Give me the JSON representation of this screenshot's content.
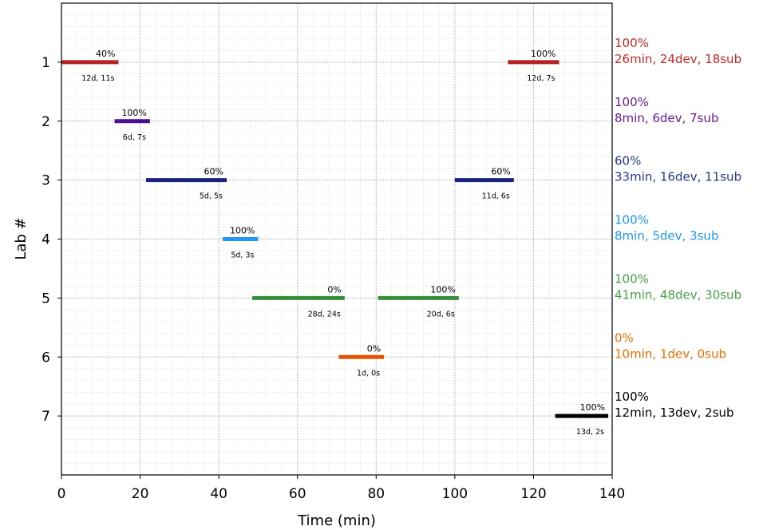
{
  "chart_data": {
    "type": "gantt",
    "xlabel": "Time (min)",
    "ylabel": "Lab #",
    "xlim": [
      0,
      140
    ],
    "ylim": [
      0,
      8
    ],
    "xticks": [
      "0",
      "20",
      "40",
      "60",
      "80",
      "100",
      "120",
      "140"
    ],
    "yticks": [
      "1",
      "2",
      "3",
      "4",
      "5",
      "6",
      "7"
    ],
    "grid": true,
    "segments": [
      {
        "lab": 1,
        "start": 0,
        "end": 14.5,
        "pct": "40%",
        "sub": "12d, 11s",
        "color": "#b22222"
      },
      {
        "lab": 1,
        "start": 113.5,
        "end": 126.5,
        "pct": "100%",
        "sub": "12d, 7s",
        "color": "#b22222"
      },
      {
        "lab": 2,
        "start": 13.5,
        "end": 22.5,
        "pct": "100%",
        "sub": "6d, 7s",
        "color": "#4b0f8f"
      },
      {
        "lab": 3,
        "start": 21.5,
        "end": 42,
        "pct": "60%",
        "sub": "5d, 5s",
        "color": "#1a237e"
      },
      {
        "lab": 3,
        "start": 100,
        "end": 115,
        "pct": "60%",
        "sub": "11d, 6s",
        "color": "#1a237e"
      },
      {
        "lab": 4,
        "start": 41,
        "end": 50,
        "pct": "100%",
        "sub": "5d, 3s",
        "color": "#2196f3"
      },
      {
        "lab": 5,
        "start": 48.5,
        "end": 72,
        "pct": "0%",
        "sub": "28d, 24s",
        "color": "#388e3c"
      },
      {
        "lab": 5,
        "start": 80.5,
        "end": 101,
        "pct": "100%",
        "sub": "20d, 6s",
        "color": "#388e3c"
      },
      {
        "lab": 6,
        "start": 70.5,
        "end": 82,
        "pct": "0%",
        "sub": "1d, 0s",
        "color": "#e65100"
      },
      {
        "lab": 7,
        "start": 125.5,
        "end": 139,
        "pct": "100%",
        "sub": "13d, 2s",
        "color": "#000000"
      }
    ],
    "summaries": [
      {
        "lab": 1,
        "pct": "100%",
        "detail": "26min, 24dev, 18sub",
        "color": "#c62828"
      },
      {
        "lab": 2,
        "pct": "100%",
        "detail": "8min, 6dev, 7sub",
        "color": "#6a1b9a"
      },
      {
        "lab": 3,
        "pct": "60%",
        "detail": "33min, 16dev, 11sub",
        "color": "#283593"
      },
      {
        "lab": 4,
        "pct": "100%",
        "detail": "8min, 5dev, 3sub",
        "color": "#2196f3"
      },
      {
        "lab": 5,
        "pct": "100%",
        "detail": "41min, 48dev, 30sub",
        "color": "#43a047"
      },
      {
        "lab": 6,
        "pct": "0%",
        "detail": "10min, 1dev, 0sub",
        "color": "#ef6c00"
      },
      {
        "lab": 7,
        "pct": "100%",
        "detail": "12min, 13dev, 2sub",
        "color": "#000000"
      }
    ]
  }
}
